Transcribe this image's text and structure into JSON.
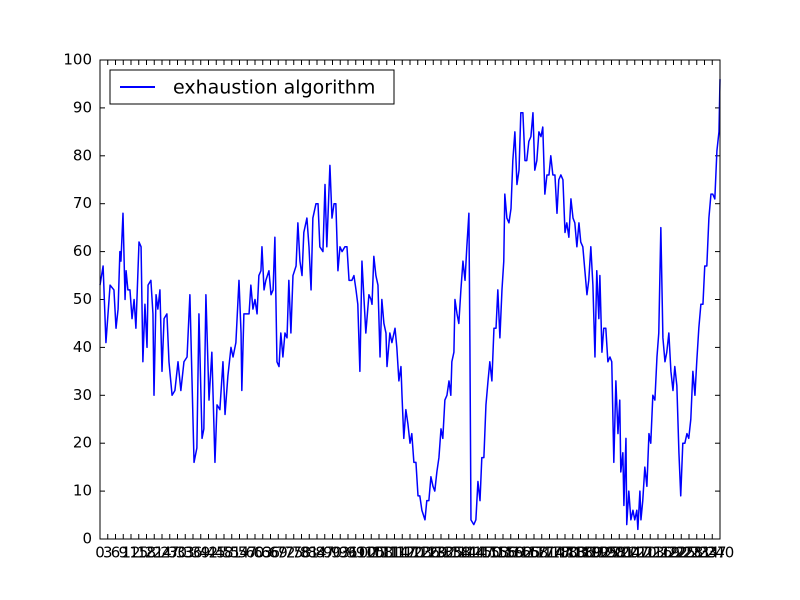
{
  "chart_data": {
    "type": "line",
    "x": [
      0,
      1.2,
      2.3,
      3.9,
      5.4,
      6.2,
      7.0,
      7.7,
      8.1,
      8.9,
      9.7,
      10.1,
      10.8,
      11.6,
      12.4,
      13.2,
      13.9,
      15.1,
      15.9,
      16.6,
      17.4,
      18.2,
      18.6,
      19.7,
      20.5,
      20.9,
      21.7,
      22.4,
      23.2,
      24.0,
      24.8,
      25.9,
      26.7,
      27.9,
      29.0,
      30.2,
      31.3,
      32.5,
      33.7,
      34.8,
      36.4,
      37.5,
      38.3,
      39.5,
      40.2,
      41.0,
      42.2,
      43.3,
      44.5,
      45.3,
      46.4,
      47.6,
      48.4,
      49.5,
      50.7,
      51.5,
      52.6,
      53.8,
      54.6,
      54.9,
      55.7,
      56.9,
      57.7,
      58.4,
      59.2,
      60.0,
      60.8,
      61.5,
      62.3,
      62.7,
      63.5,
      64.2,
      65.4,
      66.2,
      67.0,
      67.7,
      68.5,
      69.3,
      70.0,
      70.8,
      71.6,
      72.4,
      73.1,
      73.9,
      74.7,
      75.9,
      76.6,
      77.4,
      78.2,
      78.9,
      80.1,
      80.9,
      81.7,
      82.4,
      83.6,
      84.4,
      85.1,
      86.3,
      87.1,
      87.8,
      89.0,
      89.8,
      90.6,
      91.3,
      92.1,
      92.9,
      93.7,
      94.8,
      95.6,
      96.4,
      97.5,
      98.3,
      99.1,
      99.8,
      100.6,
      101.4,
      102.2,
      102.9,
      104.1,
      104.9,
      105.3,
      106.0,
      106.8,
      107.6,
      108.4,
      109.1,
      109.9,
      110.7,
      111.1,
      112.2,
      113.0,
      114.2,
      114.9,
      115.7,
      116.5,
      116.9,
      117.6,
      118.4,
      119.2,
      120.0,
      120.7,
      121.5,
      122.3,
      123.1,
      123.8,
      124.6,
      125.8,
      126.5,
      127.3,
      128.1,
      128.9,
      129.6,
      130.4,
      131.2,
      132.0,
      132.7,
      133.5,
      134.3,
      135.1,
      135.8,
      136.2,
      137.0,
      137.4,
      138.2,
      138.9,
      139.7,
      140.5,
      141.3,
      142.0,
      142.8,
      143.2,
      143.6,
      144.7,
      145.5,
      146.3,
      147.1,
      147.8,
      148.6,
      149.4,
      150.2,
      150.9,
      151.7,
      152.5,
      153.3,
      154.0,
      154.8,
      155.6,
      156.3,
      156.7,
      157.5,
      158.3,
      159.1,
      159.8,
      160.6,
      161.4,
      162.2,
      162.9,
      163.7,
      164.5,
      165.2,
      166.0,
      166.8,
      167.6,
      168.3,
      169.1,
      169.9,
      170.7,
      171.4,
      172.2,
      173.0,
      173.8,
      174.5,
      175.3,
      176.1,
      176.9,
      177.6,
      178.4,
      179.2,
      180.0,
      180.7,
      181.5,
      182.3,
      183.1,
      183.8,
      184.6,
      185.4,
      186.1,
      186.9,
      187.7,
      188.5,
      189.2,
      190.0,
      190.8,
      191.6,
      192.3,
      193.1,
      193.5,
      194.3,
      195.0,
      195.8,
      196.6,
      197.4,
      198.1,
      198.9,
      199.7,
      200.5,
      201.2,
      201.6,
      202.4,
      202.8,
      203.6,
      203.9,
      204.7,
      205.5,
      206.3,
      207.0,
      207.8,
      208.2,
      209.0,
      209.4,
      210.1,
      210.9,
      211.7,
      212.5,
      213.2,
      214.0,
      214.8,
      215.6,
      216.3,
      217.1,
      217.9,
      218.7,
      219.4,
      220.2,
      221.0,
      221.8,
      222.5,
      223.3,
      224.1,
      224.8,
      225.6,
      226.4,
      227.2,
      227.9,
      228.7,
      229.5,
      230.3,
      231.0,
      231.8,
      232.6,
      233.4,
      234.1,
      234.9,
      235.7,
      236.5,
      237.2,
      238.0,
      238.8,
      239.6,
      240.0
    ],
    "series": [
      {
        "name": "exhaustion algorithm",
        "color": "#0000ff",
        "values": [
          53,
          57,
          41,
          53,
          52,
          44,
          48,
          60,
          58,
          68,
          50,
          56,
          52,
          52,
          46,
          50,
          44,
          62,
          61,
          37,
          49,
          40,
          53,
          54,
          47,
          30,
          51,
          48,
          52,
          35,
          46,
          47,
          37,
          30,
          31,
          37,
          31,
          37,
          38,
          51,
          16,
          19,
          47,
          21,
          23,
          51,
          29,
          39,
          16,
          28,
          27,
          37,
          26,
          34,
          40,
          38,
          41,
          54,
          43,
          31,
          47,
          47,
          47,
          53,
          48,
          50,
          47,
          55,
          56,
          61,
          52,
          54,
          56,
          51,
          52,
          63,
          37,
          36,
          43,
          38,
          43,
          42,
          54,
          43,
          55,
          57,
          66,
          58,
          55,
          64,
          67,
          61,
          52,
          67,
          70,
          70,
          61,
          60,
          74,
          61,
          78,
          67,
          70,
          70,
          56,
          61,
          60,
          61,
          61,
          54,
          54,
          55,
          52,
          49,
          35,
          58,
          50,
          43,
          51,
          50,
          49,
          59,
          55,
          53,
          38,
          50,
          45,
          43,
          36,
          43,
          41,
          44,
          40,
          33,
          36,
          30,
          21,
          27,
          24,
          20,
          22,
          16,
          16,
          9,
          9,
          6,
          4,
          8,
          8,
          13,
          11,
          10,
          14,
          17,
          23,
          21,
          29,
          30,
          33,
          30,
          37,
          39,
          50,
          47,
          45,
          52,
          58,
          54,
          61,
          68,
          40,
          4,
          3,
          4,
          12,
          8,
          17,
          17,
          28,
          33,
          37,
          33,
          44,
          44,
          52,
          42,
          52,
          58,
          72,
          67,
          66,
          69,
          79,
          85,
          74,
          77,
          89,
          89,
          79,
          79,
          83,
          84,
          89,
          77,
          79,
          85,
          84,
          86,
          72,
          76,
          76,
          80,
          76,
          76,
          68,
          75,
          76,
          75,
          64,
          66,
          63,
          71,
          67,
          66,
          61,
          66,
          62,
          61,
          56,
          51,
          54,
          61,
          53,
          38,
          56,
          46,
          55,
          39,
          44,
          44,
          37,
          38,
          37,
          16,
          33,
          22,
          29,
          14,
          18,
          7,
          21,
          3,
          10,
          4,
          6,
          4,
          6,
          2,
          10,
          4,
          8,
          15,
          11,
          22,
          20,
          30,
          29,
          38,
          43,
          65,
          42,
          37,
          39,
          43,
          35,
          31,
          36,
          32,
          18,
          9,
          20,
          20,
          22,
          21,
          25,
          35,
          30,
          37,
          44,
          49,
          49,
          57,
          57,
          67,
          72,
          72,
          71,
          81,
          85,
          96
        ]
      }
    ],
    "xlim": [
      0,
      240
    ],
    "ylim": [
      0,
      100
    ],
    "xticks": [
      0,
      3,
      6,
      9,
      12,
      15,
      18,
      21,
      24,
      27,
      30,
      33,
      36,
      39,
      42,
      45,
      48,
      51,
      54,
      57,
      60,
      63,
      66,
      69,
      72,
      75,
      78,
      81,
      84,
      87,
      90,
      93,
      96,
      99,
      102,
      105,
      108,
      111,
      114,
      117,
      120,
      123,
      126,
      129,
      132,
      135,
      138,
      141,
      144,
      147,
      150,
      153,
      156,
      159,
      162,
      165,
      168,
      171,
      174,
      177,
      180,
      183,
      186,
      189,
      192,
      195,
      198,
      201,
      204,
      207,
      210,
      213,
      216,
      219,
      222,
      225,
      228,
      231,
      234,
      237,
      240
    ],
    "yticks": [
      0,
      10,
      20,
      30,
      40,
      50,
      60,
      70,
      80,
      90,
      100
    ],
    "legend": "upper left"
  }
}
